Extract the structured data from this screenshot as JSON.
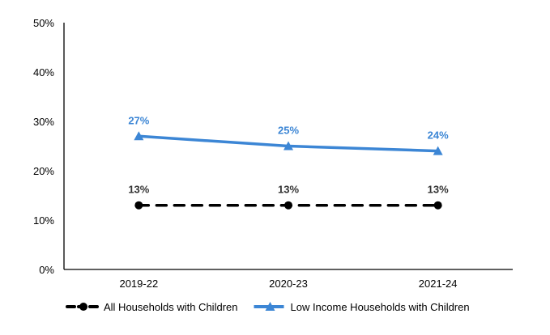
{
  "chart_data": {
    "type": "line",
    "categories": [
      "2019-22",
      "2020-23",
      "2021-24"
    ],
    "ylim": [
      0,
      50
    ],
    "yticks": [
      "0%",
      "10%",
      "20%",
      "30%",
      "40%",
      "50%"
    ],
    "grid": false,
    "legend_position": "bottom",
    "series": [
      {
        "name": "All Households with Children",
        "values": [
          13,
          13,
          13
        ],
        "labels": [
          "13%",
          "13%",
          "13%"
        ],
        "color": "#000000",
        "label_color": "#333333",
        "style": "dashed",
        "marker": "circle"
      },
      {
        "name": "Low Income Households with Children",
        "values": [
          27,
          25,
          24
        ],
        "labels": [
          "27%",
          "25%",
          "24%"
        ],
        "color": "#3C86D5",
        "label_color": "#3C86D5",
        "style": "solid",
        "marker": "triangle"
      }
    ]
  }
}
